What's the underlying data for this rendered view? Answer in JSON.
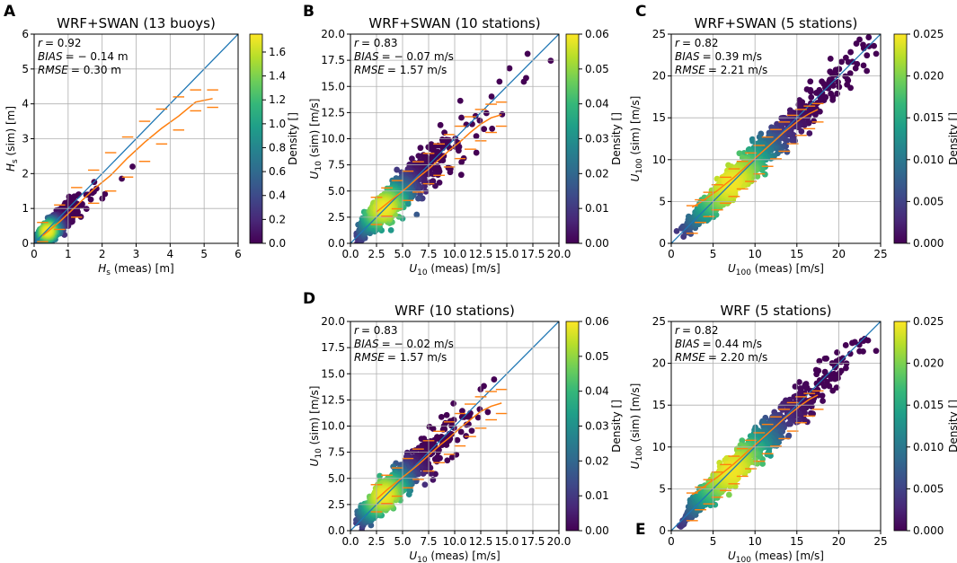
{
  "colors": {
    "background": "#440154",
    "identity_line": "#1f77b4",
    "binned_line": "#ff7f0e",
    "colormap": [
      "#440154",
      "#482878",
      "#3e4989",
      "#31688e",
      "#26828e",
      "#1f9e89",
      "#35b779",
      "#6ece58",
      "#b5de2b",
      "#fde725"
    ]
  },
  "chart_data": [
    {
      "id": "A",
      "type": "scatter",
      "panel_letter": "A",
      "title": "WRF+SWAN (13 buoys)",
      "xlabel_pre": "H",
      "xlabel_sub": "s",
      "xlabel_post": " (meas) [m]",
      "ylabel_pre": "H",
      "ylabel_sub": "s",
      "ylabel_post": " (sim) [m]",
      "xlim": [
        0,
        6
      ],
      "ylim": [
        0,
        6
      ],
      "xticks": [
        "0",
        "1",
        "2",
        "3",
        "4",
        "5",
        "6"
      ],
      "yticks": [
        "0",
        "1",
        "2",
        "3",
        "4",
        "5",
        "6"
      ],
      "stats": [
        "r = 0.92",
        "BIAS = − 0.14 m",
        "RMSE = 0.30 m"
      ],
      "stat_names": [
        "r",
        "BIAS",
        "RMSE"
      ],
      "stat_values": [
        "= 0.92",
        "= − 0.14 m",
        "= 0.30 m"
      ],
      "colorbar": {
        "label": "Density []",
        "min": 0.0,
        "max": 1.75,
        "ticks": [
          "0.0",
          "0.2",
          "0.4",
          "0.6",
          "0.8",
          "1.0",
          "1.2",
          "1.4",
          "1.6"
        ],
        "tick_values": [
          0.0,
          0.2,
          0.4,
          0.6,
          0.8,
          1.0,
          1.2,
          1.4,
          1.6
        ]
      },
      "density_peak": [
        0.4,
        0.35
      ],
      "point_cloud": {
        "center_slope": 0.86,
        "spread": 0.55,
        "x_max": 5.6
      },
      "binned": [
        {
          "x": 0.25,
          "y": 0.22,
          "lo": 0.05,
          "hi": 0.6
        },
        {
          "x": 0.75,
          "y": 0.62,
          "lo": 0.4,
          "hi": 1.1
        },
        {
          "x": 1.25,
          "y": 1.08,
          "lo": 0.75,
          "hi": 1.6
        },
        {
          "x": 1.75,
          "y": 1.55,
          "lo": 1.15,
          "hi": 2.1
        },
        {
          "x": 2.25,
          "y": 1.95,
          "lo": 1.5,
          "hi": 2.6
        },
        {
          "x": 2.75,
          "y": 2.45,
          "lo": 1.9,
          "hi": 3.05
        },
        {
          "x": 3.25,
          "y": 2.9,
          "lo": 2.35,
          "hi": 3.5
        },
        {
          "x": 3.75,
          "y": 3.3,
          "lo": 2.85,
          "hi": 3.85
        },
        {
          "x": 4.25,
          "y": 3.65,
          "lo": 3.25,
          "hi": 4.2
        },
        {
          "x": 4.75,
          "y": 4.05,
          "lo": 3.8,
          "hi": 4.4
        },
        {
          "x": 5.25,
          "y": 4.15,
          "lo": 3.9,
          "hi": 4.4
        }
      ]
    },
    {
      "id": "B",
      "type": "scatter",
      "panel_letter": "B",
      "title": "WRF+SWAN (10 stations)",
      "xlabel_pre": "U",
      "xlabel_sub": "10",
      "xlabel_post": " (meas) [m/s]",
      "ylabel_pre": "U",
      "ylabel_sub": "10",
      "ylabel_post": " (sim) [m/s]",
      "xlim": [
        0,
        20
      ],
      "ylim": [
        0,
        20
      ],
      "xticks": [
        "0.0",
        "2.5",
        "5.0",
        "7.5",
        "10.0",
        "12.5",
        "15.0",
        "17.5",
        "20.0"
      ],
      "yticks": [
        "0.0",
        "2.5",
        "5.0",
        "7.5",
        "10.0",
        "12.5",
        "15.0",
        "17.5",
        "20.0"
      ],
      "stats": [
        "r = 0.83",
        "BIAS = − 0.07 m/s",
        "RMSE = 1.57 m/s"
      ],
      "stat_names": [
        "r",
        "BIAS",
        "RMSE"
      ],
      "stat_values": [
        "= 0.83",
        "= − 0.07 m/s",
        "= 1.57 m/s"
      ],
      "colorbar": {
        "label": "Density []",
        "min": 0.0,
        "max": 0.06,
        "ticks": [
          "0.00",
          "0.01",
          "0.02",
          "0.03",
          "0.04",
          "0.05",
          "0.06"
        ],
        "tick_values": [
          0.0,
          0.01,
          0.02,
          0.03,
          0.04,
          0.05,
          0.06
        ]
      },
      "density_peak": [
        3.2,
        3.4
      ],
      "point_cloud": {
        "center_slope": 0.95,
        "spread": 3.0,
        "x_max": 19.5
      },
      "binned": [
        {
          "x": 2.5,
          "y": 3.0,
          "lo": 1.8,
          "hi": 4.4
        },
        {
          "x": 3.5,
          "y": 3.8,
          "lo": 2.6,
          "hi": 5.3
        },
        {
          "x": 4.5,
          "y": 4.6,
          "lo": 3.3,
          "hi": 6.0
        },
        {
          "x": 5.5,
          "y": 5.4,
          "lo": 4.1,
          "hi": 6.9
        },
        {
          "x": 6.5,
          "y": 6.3,
          "lo": 4.9,
          "hi": 7.8
        },
        {
          "x": 7.5,
          "y": 7.1,
          "lo": 5.7,
          "hi": 8.6
        },
        {
          "x": 8.5,
          "y": 8.0,
          "lo": 6.5,
          "hi": 9.5
        },
        {
          "x": 9.5,
          "y": 8.9,
          "lo": 7.3,
          "hi": 10.4
        },
        {
          "x": 10.5,
          "y": 9.7,
          "lo": 8.1,
          "hi": 11.2
        },
        {
          "x": 11.5,
          "y": 10.6,
          "lo": 9.0,
          "hi": 12.1
        },
        {
          "x": 12.5,
          "y": 11.4,
          "lo": 9.8,
          "hi": 12.8
        },
        {
          "x": 13.5,
          "y": 12.0,
          "lo": 10.6,
          "hi": 13.3
        },
        {
          "x": 14.5,
          "y": 12.3,
          "lo": 11.2,
          "hi": 13.5
        }
      ]
    },
    {
      "id": "C",
      "type": "scatter",
      "panel_letter": "C",
      "title": "WRF+SWAN (5 stations)",
      "xlabel_pre": "U",
      "xlabel_sub": "100",
      "xlabel_post": " (meas) [m/s]",
      "ylabel_pre": "U",
      "ylabel_sub": "100",
      "ylabel_post": " (sim) [m/s]",
      "xlim": [
        0,
        25
      ],
      "ylim": [
        0,
        25
      ],
      "xticks": [
        "0",
        "5",
        "10",
        "15",
        "20",
        "25"
      ],
      "yticks": [
        "0",
        "5",
        "10",
        "15",
        "20",
        "25"
      ],
      "stats": [
        "r = 0.82",
        "BIAS = 0.39 m/s",
        "RMSE = 2.21 m/s"
      ],
      "stat_names": [
        "r",
        "BIAS",
        "RMSE"
      ],
      "stat_values": [
        "= 0.82",
        "= 0.39 m/s",
        "= 2.21 m/s"
      ],
      "colorbar": {
        "label": "Density []",
        "min": 0.0,
        "max": 0.025,
        "ticks": [
          "0.000",
          "0.005",
          "0.010",
          "0.015",
          "0.020",
          "0.025"
        ],
        "tick_values": [
          0.0,
          0.005,
          0.01,
          0.015,
          0.02,
          0.025
        ]
      },
      "density_peak": [
        7.2,
        7.2
      ],
      "point_cloud": {
        "center_slope": 0.98,
        "spread": 3.6,
        "x_max": 24.5
      },
      "binned": [
        {
          "x": 2.5,
          "y": 4.3,
          "lo": 1.2,
          "hi": 4.5
        },
        {
          "x": 3.5,
          "y": 4.9,
          "lo": 2.5,
          "hi": 5.2
        },
        {
          "x": 4.5,
          "y": 5.6,
          "lo": 3.2,
          "hi": 6.1
        },
        {
          "x": 5.5,
          "y": 6.3,
          "lo": 4.0,
          "hi": 7.0
        },
        {
          "x": 6.5,
          "y": 7.1,
          "lo": 4.8,
          "hi": 7.9
        },
        {
          "x": 7.5,
          "y": 7.9,
          "lo": 5.6,
          "hi": 8.9
        },
        {
          "x": 8.5,
          "y": 8.8,
          "lo": 6.5,
          "hi": 9.8
        },
        {
          "x": 9.5,
          "y": 9.7,
          "lo": 7.4,
          "hi": 10.8
        },
        {
          "x": 10.5,
          "y": 10.6,
          "lo": 8.3,
          "hi": 11.7
        },
        {
          "x": 11.5,
          "y": 11.5,
          "lo": 9.2,
          "hi": 12.7
        },
        {
          "x": 12.5,
          "y": 12.4,
          "lo": 10.1,
          "hi": 13.6
        },
        {
          "x": 13.5,
          "y": 13.3,
          "lo": 11.0,
          "hi": 14.5
        },
        {
          "x": 14.5,
          "y": 14.1,
          "lo": 11.9,
          "hi": 15.3
        },
        {
          "x": 15.5,
          "y": 14.9,
          "lo": 12.9,
          "hi": 16.0
        },
        {
          "x": 16.5,
          "y": 15.5,
          "lo": 13.7,
          "hi": 16.4
        },
        {
          "x": 17.5,
          "y": 16.0,
          "lo": 14.5,
          "hi": 16.7
        }
      ]
    },
    {
      "id": "D",
      "type": "scatter",
      "panel_letter": "D",
      "title": "WRF (10 stations)",
      "xlabel_pre": "U",
      "xlabel_sub": "10",
      "xlabel_post": " (meas) [m/s]",
      "ylabel_pre": "U",
      "ylabel_sub": "10",
      "ylabel_post": " (sim) [m/s]",
      "xlim": [
        0,
        20
      ],
      "ylim": [
        0,
        20
      ],
      "xticks": [
        "0.0",
        "2.5",
        "5.0",
        "7.5",
        "10.0",
        "12.5",
        "15.0",
        "17.5",
        "20.0"
      ],
      "yticks": [
        "0.0",
        "2.5",
        "5.0",
        "7.5",
        "10.0",
        "12.5",
        "15.0",
        "17.5",
        "20.0"
      ],
      "stats": [
        "r = 0.83",
        "BIAS = − 0.02 m/s",
        "RMSE = 1.57 m/s"
      ],
      "stat_names": [
        "r",
        "BIAS",
        "RMSE"
      ],
      "stat_values": [
        "= 0.83",
        "= − 0.02 m/s",
        "= 1.57 m/s"
      ],
      "colorbar": {
        "label": "Density []",
        "min": 0.0,
        "max": 0.06,
        "ticks": [
          "0.00",
          "0.01",
          "0.02",
          "0.03",
          "0.04",
          "0.05",
          "0.06"
        ],
        "tick_values": [
          0.0,
          0.01,
          0.02,
          0.03,
          0.04,
          0.05,
          0.06
        ]
      },
      "density_peak": [
        3.2,
        3.4
      ],
      "point_cloud": {
        "center_slope": 0.95,
        "spread": 3.0,
        "x_max": 19.5
      },
      "binned": [
        {
          "x": 2.5,
          "y": 3.0,
          "lo": 1.8,
          "hi": 4.4
        },
        {
          "x": 3.5,
          "y": 3.9,
          "lo": 2.6,
          "hi": 5.3
        },
        {
          "x": 4.5,
          "y": 4.7,
          "lo": 3.3,
          "hi": 6.0
        },
        {
          "x": 5.5,
          "y": 5.5,
          "lo": 4.1,
          "hi": 6.9
        },
        {
          "x": 6.5,
          "y": 6.3,
          "lo": 4.9,
          "hi": 7.8
        },
        {
          "x": 7.5,
          "y": 7.2,
          "lo": 5.7,
          "hi": 8.6
        },
        {
          "x": 8.5,
          "y": 8.1,
          "lo": 6.5,
          "hi": 9.5
        },
        {
          "x": 9.5,
          "y": 8.9,
          "lo": 7.3,
          "hi": 10.4
        },
        {
          "x": 10.5,
          "y": 9.8,
          "lo": 8.1,
          "hi": 11.2
        },
        {
          "x": 11.5,
          "y": 10.6,
          "lo": 9.0,
          "hi": 12.1
        },
        {
          "x": 12.5,
          "y": 11.4,
          "lo": 9.8,
          "hi": 12.8
        },
        {
          "x": 13.5,
          "y": 11.9,
          "lo": 10.6,
          "hi": 13.3
        },
        {
          "x": 14.5,
          "y": 12.2,
          "lo": 11.2,
          "hi": 13.5
        }
      ]
    },
    {
      "id": "E",
      "type": "scatter",
      "panel_letter": "E",
      "title": "WRF (5 stations)",
      "xlabel_pre": "U",
      "xlabel_sub": "100",
      "xlabel_post": " (meas) [m/s]",
      "ylabel_pre": "U",
      "ylabel_sub": "100",
      "ylabel_post": " (sim) [m/s]",
      "xlim": [
        0,
        25
      ],
      "ylim": [
        0,
        25
      ],
      "xticks": [
        "0",
        "5",
        "10",
        "15",
        "20",
        "25"
      ],
      "yticks": [
        "0",
        "5",
        "10",
        "15",
        "20",
        "25"
      ],
      "stats": [
        "r = 0.82",
        "BIAS = 0.44 m/s",
        "RMSE = 2.20 m/s"
      ],
      "stat_names": [
        "r",
        "BIAS",
        "RMSE"
      ],
      "stat_values": [
        "= 0.82",
        "= 0.44 m/s",
        "= 2.20 m/s"
      ],
      "colorbar": {
        "label": "Density []",
        "min": 0.0,
        "max": 0.025,
        "ticks": [
          "0.000",
          "0.005",
          "0.010",
          "0.015",
          "0.020",
          "0.025"
        ],
        "tick_values": [
          0.0,
          0.005,
          0.01,
          0.015,
          0.02,
          0.025
        ]
      },
      "density_peak": [
        7.2,
        7.2
      ],
      "point_cloud": {
        "center_slope": 0.98,
        "spread": 3.6,
        "x_max": 24.5
      },
      "binned": [
        {
          "x": 2.5,
          "y": 4.3,
          "lo": 1.2,
          "hi": 4.5
        },
        {
          "x": 3.5,
          "y": 4.9,
          "lo": 2.5,
          "hi": 5.2
        },
        {
          "x": 4.5,
          "y": 5.7,
          "lo": 3.2,
          "hi": 6.1
        },
        {
          "x": 5.5,
          "y": 6.4,
          "lo": 4.0,
          "hi": 7.0
        },
        {
          "x": 6.5,
          "y": 7.2,
          "lo": 4.8,
          "hi": 7.9
        },
        {
          "x": 7.5,
          "y": 8.0,
          "lo": 5.6,
          "hi": 8.9
        },
        {
          "x": 8.5,
          "y": 8.9,
          "lo": 6.5,
          "hi": 9.8
        },
        {
          "x": 9.5,
          "y": 9.8,
          "lo": 7.4,
          "hi": 10.8
        },
        {
          "x": 10.5,
          "y": 10.7,
          "lo": 8.3,
          "hi": 11.7
        },
        {
          "x": 11.5,
          "y": 11.6,
          "lo": 9.2,
          "hi": 12.7
        },
        {
          "x": 12.5,
          "y": 12.5,
          "lo": 10.1,
          "hi": 13.6
        },
        {
          "x": 13.5,
          "y": 13.4,
          "lo": 11.0,
          "hi": 14.5
        },
        {
          "x": 14.5,
          "y": 14.2,
          "lo": 11.9,
          "hi": 15.3
        },
        {
          "x": 15.5,
          "y": 15.0,
          "lo": 12.9,
          "hi": 16.0
        },
        {
          "x": 16.5,
          "y": 15.7,
          "lo": 13.7,
          "hi": 16.4
        },
        {
          "x": 17.5,
          "y": 16.2,
          "lo": 14.5,
          "hi": 16.7
        }
      ]
    }
  ]
}
